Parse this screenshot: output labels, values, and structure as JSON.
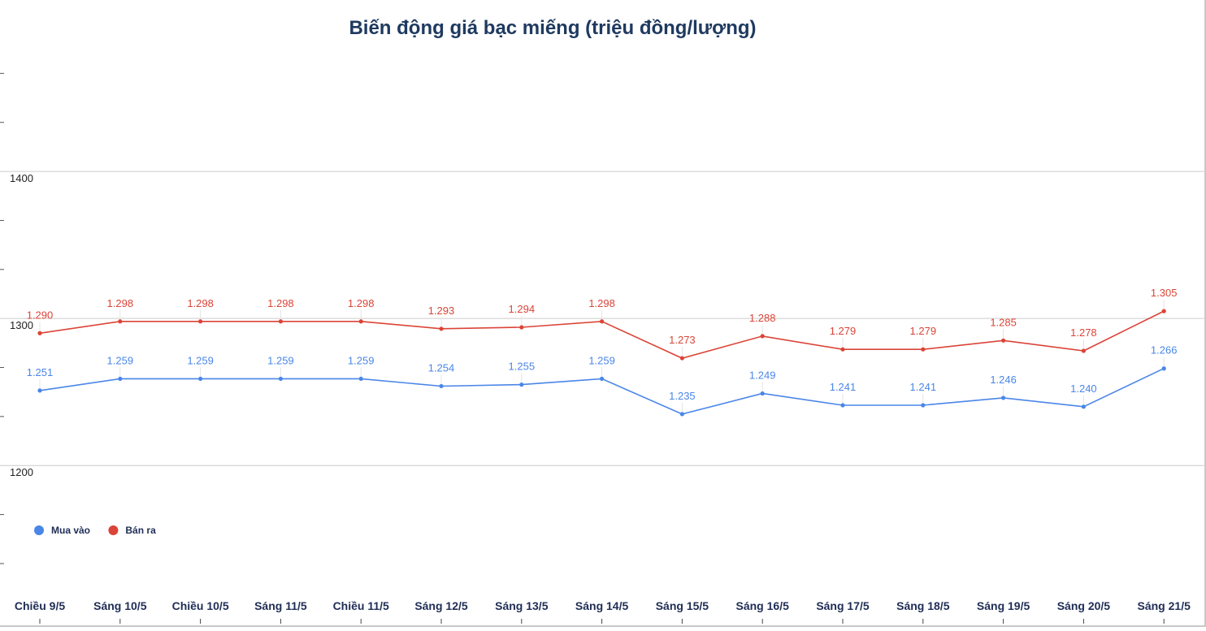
{
  "chart_data": {
    "type": "line",
    "title": "Biến động giá bạc miếng (triệu đồng/lượng)",
    "categories": [
      "Chiều 9/5",
      "Sáng 10/5",
      "Chiều 10/5",
      "Sáng 11/5",
      "Chiều 11/5",
      "Sáng 12/5",
      "Sáng 13/5",
      "Sáng 14/5",
      "Sáng 15/5",
      "Sáng 16/5",
      "Sáng 17/5",
      "Sáng 18/5",
      "Sáng 19/5",
      "Sáng 20/5",
      "Sáng 21/5"
    ],
    "series": [
      {
        "name": "Mua vào",
        "color": "#4a86e8",
        "values": [
          1251,
          1259,
          1259,
          1259,
          1259,
          1254,
          1255,
          1259,
          1235,
          1249,
          1241,
          1241,
          1246,
          1240,
          1266
        ],
        "labels": [
          "1.251",
          "1.259",
          "1.259",
          "1.259",
          "1.259",
          "1.254",
          "1.255",
          "1.259",
          "1.235",
          "1.249",
          "1.241",
          "1.241",
          "1.246",
          "1.240",
          "1.266"
        ]
      },
      {
        "name": "Bán ra",
        "color": "#db4437",
        "values": [
          1290,
          1298,
          1298,
          1298,
          1298,
          1293,
          1294,
          1298,
          1273,
          1288,
          1279,
          1279,
          1285,
          1278,
          1305
        ],
        "labels": [
          "1.290",
          "1.298",
          "1.298",
          "1.298",
          "1.298",
          "1.293",
          "1.294",
          "1.298",
          "1.273",
          "1.288",
          "1.279",
          "1.279",
          "1.285",
          "1.278",
          "1.305"
        ]
      }
    ],
    "yticks": [
      1200,
      1300,
      1400
    ],
    "ylim": [
      1130,
      1500
    ],
    "grid": true,
    "legend_position": "bottom-left",
    "title_color": "#1f3a60",
    "grid_color": "#cccccc"
  }
}
